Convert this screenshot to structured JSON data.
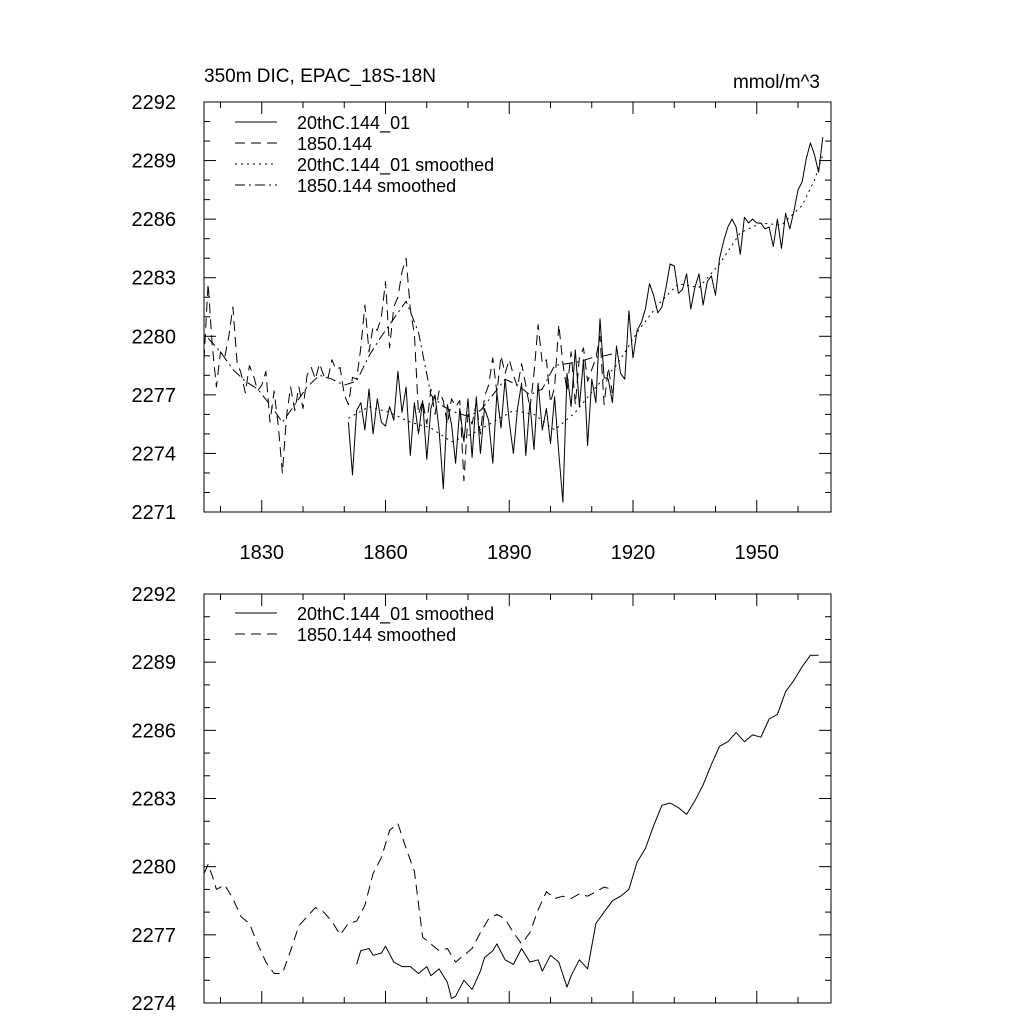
{
  "chart_data": [
    {
      "type": "line",
      "title": "350m DIC, EPAC_18S-18N",
      "units": "mmol/m^3",
      "xlim": [
        1816,
        1968
      ],
      "ylim": [
        2271,
        2292
      ],
      "xticks": [
        1830,
        1860,
        1890,
        1920,
        1950
      ],
      "xtick_labels": [
        "1830",
        "1860",
        "1890",
        "1920",
        "1950"
      ],
      "yticks": [
        2271,
        2274,
        2277,
        2280,
        2283,
        2286,
        2289,
        2292
      ],
      "ytick_labels": [
        "2271",
        "2274",
        "2277",
        "2280",
        "2283",
        "2286",
        "2289",
        "2292"
      ],
      "legend_position": "top-left",
      "series": [
        {
          "name": "20thC.144_01",
          "style": "solid",
          "x": [
            1851,
            1852,
            1853,
            1854,
            1855,
            1856,
            1857,
            1858,
            1859,
            1860,
            1861,
            1862,
            1863,
            1864,
            1865,
            1866,
            1867,
            1868,
            1869,
            1870,
            1871,
            1872,
            1873,
            1874,
            1875,
            1876,
            1877,
            1878,
            1879,
            1880,
            1881,
            1882,
            1883,
            1884,
            1885,
            1886,
            1887,
            1888,
            1889,
            1890,
            1891,
            1892,
            1893,
            1894,
            1895,
            1896,
            1897,
            1898,
            1899,
            1900,
            1901,
            1902,
            1903,
            1904,
            1905,
            1906,
            1907,
            1908,
            1909,
            1910,
            1911,
            1912,
            1913,
            1914,
            1915,
            1916,
            1917,
            1918,
            1919,
            1920,
            1921,
            1922,
            1923,
            1924,
            1925,
            1926,
            1927,
            1928,
            1929,
            1930,
            1931,
            1932,
            1933,
            1934,
            1935,
            1936,
            1937,
            1938,
            1939,
            1940,
            1941,
            1942,
            1943,
            1944,
            1945,
            1946,
            1947,
            1948,
            1949,
            1950,
            1951,
            1952,
            1953,
            1954,
            1955,
            1956,
            1957,
            1958,
            1959,
            1960,
            1961,
            1962,
            1963,
            1964,
            1965,
            1966
          ],
          "y": [
            2275.6,
            2272.9,
            2276.2,
            2276.6,
            2275.2,
            2277.3,
            2275.0,
            2276.8,
            2275.6,
            2275.4,
            2276.4,
            2275.7,
            2278.2,
            2276.1,
            2277.4,
            2273.9,
            2276.6,
            2275.0,
            2276.7,
            2273.7,
            2276.3,
            2277.0,
            2275.2,
            2272.2,
            2276.5,
            2275.5,
            2273.5,
            2276.3,
            2274.6,
            2276.8,
            2273.8,
            2276.9,
            2274.0,
            2276.3,
            2275.7,
            2273.5,
            2277.1,
            2275.3,
            2277.8,
            2275.6,
            2274.0,
            2276.3,
            2277.6,
            2273.9,
            2276.6,
            2274.2,
            2277.6,
            2275.2,
            2276.3,
            2274.5,
            2276.9,
            2274.0,
            2271.5,
            2278.1,
            2276.4,
            2279.3,
            2276.4,
            2278.8,
            2274.4,
            2277.8,
            2276.6,
            2280.9,
            2277.9,
            2277.8,
            2276.6,
            2279.5,
            2278.1,
            2277.8,
            2281.3,
            2278.9,
            2280.3,
            2280.7,
            2281.4,
            2282.7,
            2282.1,
            2281.2,
            2281.5,
            2282.5,
            2283.7,
            2283.6,
            2282.2,
            2282.4,
            2283.2,
            2281.4,
            2282.5,
            2283.2,
            2281.6,
            2282.8,
            2283.1,
            2282.1,
            2284.0,
            2284.9,
            2285.6,
            2286.0,
            2285.6,
            2284.2,
            2286.1,
            2285.8,
            2286.0,
            2285.8,
            2285.8,
            2285.5,
            2285.6,
            2284.6,
            2286.0,
            2284.5,
            2286.3,
            2285.5,
            2286.4,
            2287.5,
            2287.9,
            2289.1,
            2289.9,
            2289.3,
            2288.4,
            2290.2
          ]
        },
        {
          "name": "1850.144",
          "style": "dashed",
          "x": [
            1816,
            1817,
            1818,
            1819,
            1820,
            1821,
            1822,
            1823,
            1824,
            1825,
            1826,
            1827,
            1828,
            1829,
            1830,
            1831,
            1832,
            1833,
            1834,
            1835,
            1836,
            1837,
            1838,
            1839,
            1840,
            1841,
            1842,
            1843,
            1844,
            1845,
            1846,
            1847,
            1848,
            1849,
            1850,
            1851,
            1852,
            1853,
            1854,
            1855,
            1856,
            1857,
            1858,
            1859,
            1860,
            1861,
            1862,
            1863,
            1864,
            1865,
            1866,
            1867,
            1868,
            1869,
            1870,
            1871,
            1872,
            1873,
            1874,
            1875,
            1876,
            1877,
            1878,
            1879,
            1880,
            1881,
            1882,
            1883,
            1884,
            1885,
            1886,
            1887,
            1888,
            1889,
            1890,
            1891,
            1892,
            1893,
            1894,
            1895,
            1896,
            1897,
            1898,
            1899,
            1900,
            1901,
            1902,
            1903,
            1904,
            1905,
            1906,
            1907,
            1908,
            1909,
            1910,
            1911,
            1912,
            1913,
            1914,
            1915
          ],
          "y": [
            2278.8,
            2282.7,
            2279.5,
            2277.4,
            2279.2,
            2278.9,
            2280.0,
            2281.5,
            2278.7,
            2278.1,
            2277.1,
            2278.5,
            2278.0,
            2277.2,
            2277.5,
            2278.2,
            2275.6,
            2277.2,
            2275.4,
            2273.0,
            2275.9,
            2277.4,
            2276.2,
            2277.4,
            2276.3,
            2278.0,
            2278.4,
            2277.8,
            2278.6,
            2278.0,
            2277.8,
            2278.8,
            2278.3,
            2278.4,
            2277.0,
            2276.5,
            2277.9,
            2277.8,
            2279.4,
            2281.6,
            2279.2,
            2280.5,
            2280.3,
            2281.0,
            2282.8,
            2279.4,
            2281.5,
            2282.0,
            2283.3,
            2284.0,
            2281.4,
            2280.1,
            2276.0,
            2276.7,
            2275.5,
            2277.3,
            2276.0,
            2277.2,
            2276.7,
            2275.5,
            2276.8,
            2276.4,
            2276.7,
            2272.6,
            2276.0,
            2275.5,
            2276.6,
            2275.0,
            2276.9,
            2277.5,
            2278.9,
            2277.1,
            2279.0,
            2278.1,
            2278.8,
            2278.0,
            2277.4,
            2278.6,
            2277.5,
            2276.3,
            2278.1,
            2280.6,
            2278.6,
            2278.8,
            2276.6,
            2277.4,
            2280.6,
            2278.6,
            2277.2,
            2279.2,
            2276.5,
            2278.9,
            2279.4,
            2277.7,
            2278.3,
            2278.9,
            2280.0,
            2276.5,
            2278.4,
            2277.1
          ]
        },
        {
          "name": "20thC.144_01 smoothed",
          "style": "dotted",
          "x": [
            1851,
            1856,
            1861,
            1866,
            1871,
            1876,
            1881,
            1886,
            1891,
            1896,
            1901,
            1906,
            1911,
            1916,
            1921,
            1926,
            1931,
            1936,
            1941,
            1946,
            1951,
            1956,
            1961,
            1964,
            1966
          ],
          "y": [
            2275.8,
            2276.4,
            2276.1,
            2275.6,
            2275.3,
            2274.6,
            2275.0,
            2275.6,
            2276.2,
            2276.0,
            2275.2,
            2276.1,
            2277.4,
            2278.5,
            2280.2,
            2281.6,
            2282.7,
            2282.5,
            2283.7,
            2285.3,
            2285.8,
            2285.7,
            2286.7,
            2288.0,
            2289.3
          ]
        },
        {
          "name": "1850.144 smoothed",
          "style": "dashdot",
          "x": [
            1817,
            1820,
            1823,
            1826,
            1829,
            1832,
            1835,
            1838,
            1841,
            1844,
            1847,
            1850,
            1853,
            1856,
            1859,
            1862,
            1865,
            1868,
            1871,
            1874,
            1877,
            1880,
            1883,
            1886,
            1889,
            1892,
            1895,
            1898,
            1901,
            1904,
            1907,
            1910,
            1913,
            1915
          ],
          "y": [
            2279.9,
            2279.2,
            2278.3,
            2277.7,
            2277.3,
            2276.5,
            2275.6,
            2276.5,
            2277.4,
            2278.0,
            2277.8,
            2277.5,
            2277.7,
            2279.0,
            2280.0,
            2280.9,
            2281.8,
            2280.2,
            2277.0,
            2276.4,
            2276.1,
            2275.9,
            2276.2,
            2277.0,
            2277.8,
            2277.5,
            2277.0,
            2277.3,
            2278.5,
            2278.6,
            2278.7,
            2278.9,
            2279.0,
            2279.1
          ]
        }
      ]
    },
    {
      "type": "line",
      "xlim": [
        1816,
        1968
      ],
      "ylim": [
        2274,
        2292
      ],
      "xticks": [
        1830,
        1860,
        1890,
        1920,
        1950
      ],
      "yticks": [
        2274,
        2277,
        2280,
        2283,
        2286,
        2289,
        2292
      ],
      "ytick_labels": [
        "2274",
        "2277",
        "2280",
        "2283",
        "2286",
        "2289",
        "2292"
      ],
      "legend_position": "top-left",
      "series": [
        {
          "name": "20thC.144_01 smoothed",
          "style": "solid",
          "x": [
            1853,
            1854,
            1856,
            1857,
            1859,
            1860,
            1862,
            1864,
            1866,
            1868,
            1870,
            1871,
            1873,
            1875,
            1876,
            1877,
            1879,
            1881,
            1883,
            1884,
            1886,
            1887,
            1889,
            1891,
            1893,
            1895,
            1897,
            1898,
            1900,
            1902,
            1904,
            1905,
            1907,
            1909,
            1911,
            1913,
            1915,
            1917,
            1919,
            1921,
            1923,
            1925,
            1927,
            1929,
            1931,
            1933,
            1935,
            1937,
            1939,
            1941,
            1943,
            1945,
            1947,
            1949,
            1951,
            1953,
            1955,
            1957,
            1959,
            1961,
            1963,
            1965
          ],
          "y": [
            2275.7,
            2276.3,
            2276.4,
            2276.1,
            2276.2,
            2276.5,
            2275.8,
            2275.6,
            2275.6,
            2275.3,
            2275.6,
            2275.2,
            2275.5,
            2274.9,
            2274.2,
            2274.3,
            2275.0,
            2274.6,
            2275.4,
            2276.0,
            2276.3,
            2276.6,
            2275.9,
            2275.7,
            2276.4,
            2275.8,
            2275.9,
            2275.4,
            2276.1,
            2275.8,
            2274.7,
            2275.2,
            2275.9,
            2275.5,
            2277.5,
            2278.0,
            2278.5,
            2278.7,
            2279.0,
            2280.2,
            2280.8,
            2281.8,
            2282.7,
            2282.8,
            2282.6,
            2282.3,
            2282.9,
            2283.6,
            2284.5,
            2285.3,
            2285.5,
            2285.9,
            2285.5,
            2285.8,
            2285.7,
            2286.5,
            2286.7,
            2287.7,
            2288.2,
            2288.8,
            2289.3,
            2289.3
          ]
        },
        {
          "name": "1850.144 smoothed",
          "style": "dashed",
          "x": [
            1816,
            1817,
            1818,
            1819,
            1821,
            1823,
            1825,
            1827,
            1829,
            1831,
            1833,
            1835,
            1837,
            1839,
            1841,
            1843,
            1845,
            1847,
            1849,
            1851,
            1853,
            1855,
            1857,
            1859,
            1861,
            1863,
            1865,
            1867,
            1869,
            1871,
            1873,
            1875,
            1877,
            1879,
            1881,
            1883,
            1885,
            1887,
            1889,
            1891,
            1893,
            1895,
            1897,
            1899,
            1901,
            1903,
            1905,
            1907,
            1909,
            1911,
            1913,
            1915
          ],
          "y": [
            2279.7,
            2280.1,
            2279.6,
            2279.0,
            2279.2,
            2278.6,
            2277.8,
            2277.5,
            2276.6,
            2275.8,
            2275.3,
            2275.3,
            2276.3,
            2277.4,
            2277.8,
            2278.2,
            2278.0,
            2277.6,
            2277.0,
            2277.5,
            2277.6,
            2278.3,
            2279.7,
            2280.4,
            2281.6,
            2281.9,
            2280.8,
            2279.8,
            2276.9,
            2276.6,
            2276.3,
            2276.4,
            2275.8,
            2276.1,
            2276.4,
            2277.1,
            2277.7,
            2277.9,
            2277.7,
            2277.1,
            2276.6,
            2277.1,
            2278.1,
            2278.9,
            2278.6,
            2278.7,
            2278.6,
            2278.8,
            2278.7,
            2278.9,
            2279.1,
            2279.0
          ]
        }
      ]
    }
  ]
}
